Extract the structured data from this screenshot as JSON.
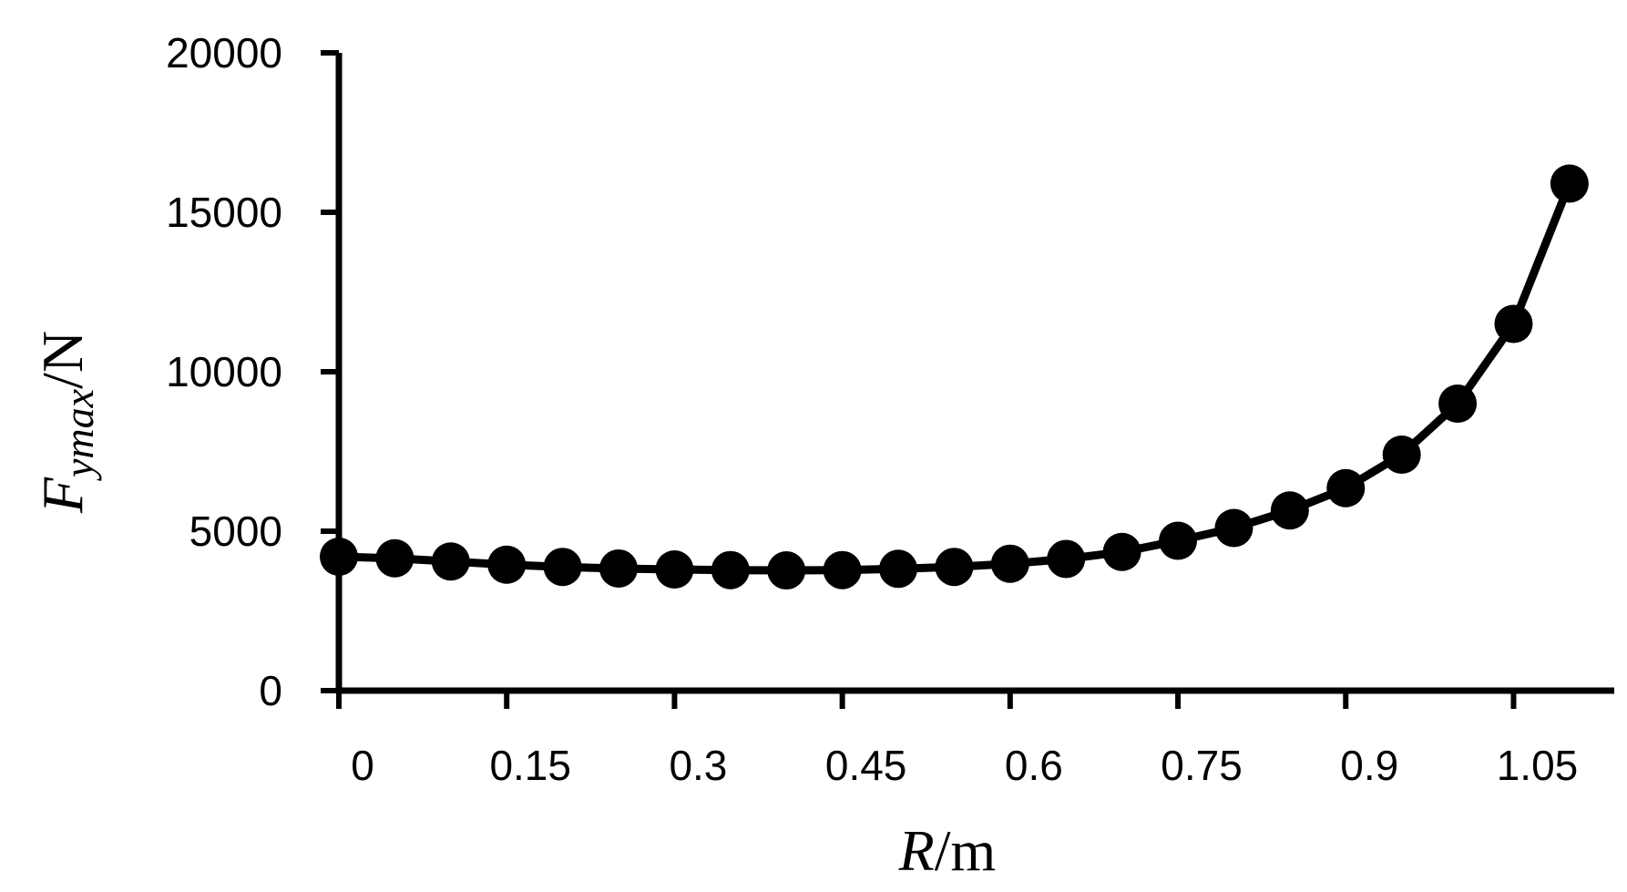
{
  "chart_data": {
    "type": "line",
    "xlabel": {
      "var": "R",
      "unit": "/m"
    },
    "ylabel": {
      "var": "F",
      "sub": "ymax",
      "unit": "/N"
    },
    "xlim": [
      0,
      1.14
    ],
    "ylim": [
      0,
      20000
    ],
    "x_tick_labels": [
      "0",
      "0.15",
      "0.3",
      "0.45",
      "0.6",
      "0.75",
      "0.9",
      "1.05"
    ],
    "y_tick_labels": [
      "0",
      "5000",
      "10000",
      "15000",
      "20000"
    ],
    "grid": false,
    "series": [
      {
        "x": [
          0.0,
          0.05,
          0.1,
          0.15,
          0.2,
          0.25,
          0.3,
          0.35,
          0.4,
          0.45,
          0.5,
          0.55,
          0.6,
          0.65,
          0.7,
          0.75,
          0.8,
          0.85,
          0.9,
          0.95,
          1.0,
          1.05,
          1.1
        ],
        "y": [
          4200,
          4150,
          4050,
          3950,
          3880,
          3830,
          3800,
          3780,
          3770,
          3780,
          3820,
          3880,
          3980,
          4130,
          4350,
          4700,
          5100,
          5650,
          6350,
          7400,
          9000,
          11500,
          15900
        ]
      }
    ],
    "color": "#000000"
  }
}
